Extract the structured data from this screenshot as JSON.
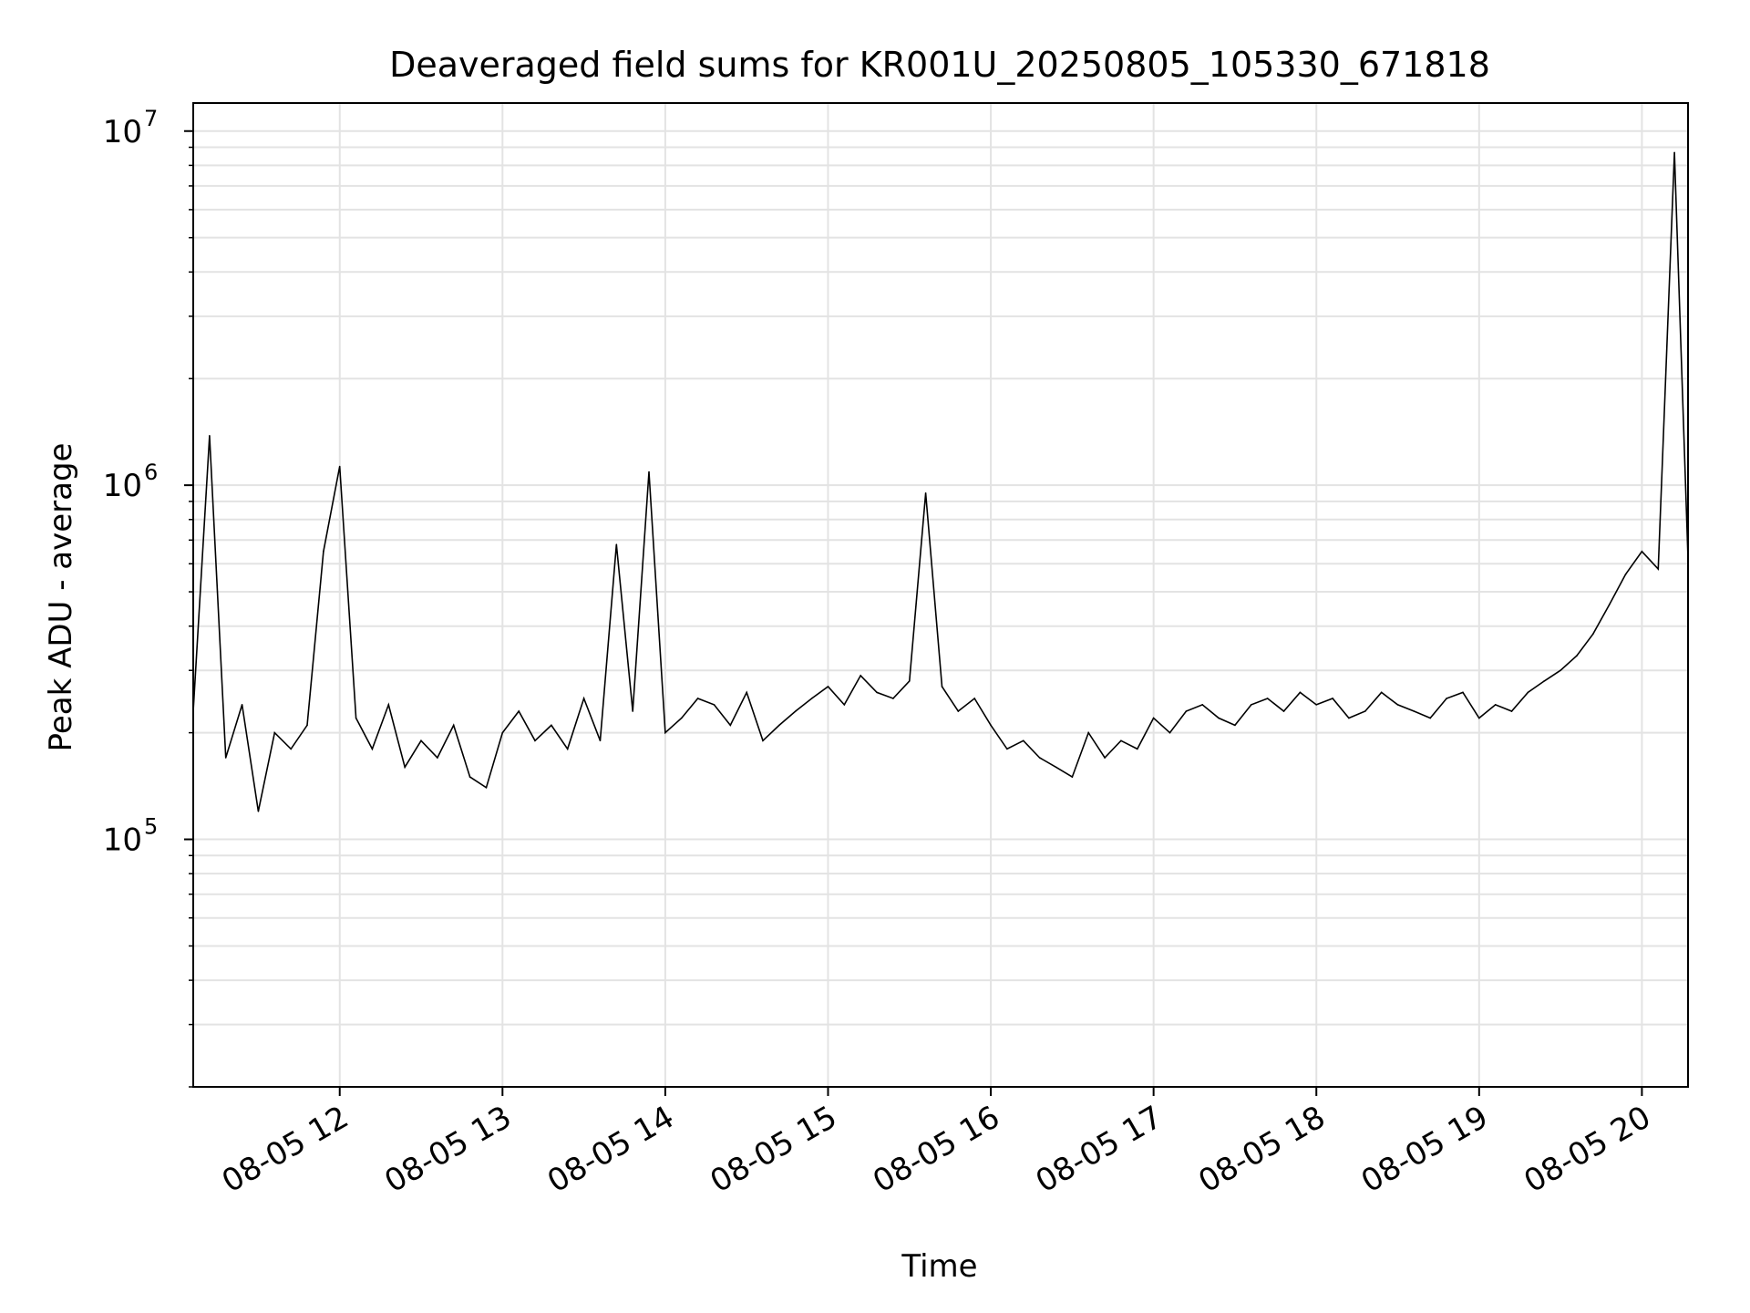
{
  "chart_data": {
    "type": "line",
    "title": "Deaveraged field sums for KR001U_20250805_105330_671818",
    "xlabel": "Time",
    "ylabel": "Peak ADU - average",
    "x_range": [
      "08-05 11:06",
      "08-05 20:17"
    ],
    "y_scale": "log",
    "ylim": [
      20000,
      12000000
    ],
    "grid": true,
    "line_color": "#000000",
    "grid_color": "#e3e3e3",
    "x_ticks": [
      {
        "value": "08-05 12:00",
        "label": "08-05 12"
      },
      {
        "value": "08-05 13:00",
        "label": "08-05 13"
      },
      {
        "value": "08-05 14:00",
        "label": "08-05 14"
      },
      {
        "value": "08-05 15:00",
        "label": "08-05 15"
      },
      {
        "value": "08-05 16:00",
        "label": "08-05 16"
      },
      {
        "value": "08-05 17:00",
        "label": "08-05 17"
      },
      {
        "value": "08-05 18:00",
        "label": "08-05 18"
      },
      {
        "value": "08-05 19:00",
        "label": "08-05 19"
      },
      {
        "value": "08-05 20:00",
        "label": "08-05 20"
      }
    ],
    "y_ticks": [
      {
        "value": 100000,
        "base": "10",
        "exp": "5"
      },
      {
        "value": 1000000,
        "base": "10",
        "exp": "6"
      },
      {
        "value": 10000000,
        "base": "10",
        "exp": "7"
      }
    ],
    "series": [
      {
        "x": [
          "08-05 11:06",
          "08-05 11:12",
          "08-05 11:18",
          "08-05 11:24",
          "08-05 11:30",
          "08-05 11:36",
          "08-05 11:42",
          "08-05 11:48",
          "08-05 11:54",
          "08-05 12:00",
          "08-05 12:06",
          "08-05 12:12",
          "08-05 12:18",
          "08-05 12:24",
          "08-05 12:30",
          "08-05 12:36",
          "08-05 12:42",
          "08-05 12:48",
          "08-05 12:54",
          "08-05 13:00",
          "08-05 13:06",
          "08-05 13:12",
          "08-05 13:18",
          "08-05 13:24",
          "08-05 13:30",
          "08-05 13:36",
          "08-05 13:42",
          "08-05 13:48",
          "08-05 13:54",
          "08-05 14:00",
          "08-05 14:06",
          "08-05 14:12",
          "08-05 14:18",
          "08-05 14:24",
          "08-05 14:30",
          "08-05 14:36",
          "08-05 14:42",
          "08-05 14:48",
          "08-05 14:54",
          "08-05 15:00",
          "08-05 15:06",
          "08-05 15:12",
          "08-05 15:18",
          "08-05 15:24",
          "08-05 15:30",
          "08-05 15:36",
          "08-05 15:42",
          "08-05 15:48",
          "08-05 15:54",
          "08-05 16:00",
          "08-05 16:06",
          "08-05 16:12",
          "08-05 16:18",
          "08-05 16:24",
          "08-05 16:30",
          "08-05 16:36",
          "08-05 16:42",
          "08-05 16:48",
          "08-05 16:54",
          "08-05 17:00",
          "08-05 17:06",
          "08-05 17:12",
          "08-05 17:18",
          "08-05 17:24",
          "08-05 17:30",
          "08-05 17:36",
          "08-05 17:42",
          "08-05 17:48",
          "08-05 17:54",
          "08-05 18:00",
          "08-05 18:06",
          "08-05 18:12",
          "08-05 18:18",
          "08-05 18:24",
          "08-05 18:30",
          "08-05 18:36",
          "08-05 18:42",
          "08-05 18:48",
          "08-05 18:54",
          "08-05 19:00",
          "08-05 19:06",
          "08-05 19:12",
          "08-05 19:18",
          "08-05 19:24",
          "08-05 19:30",
          "08-05 19:36",
          "08-05 19:42",
          "08-05 19:48",
          "08-05 19:54",
          "08-05 20:00",
          "08-05 20:06",
          "08-05 20:12",
          "08-05 20:17"
        ],
        "y": [
          230000,
          1380000,
          170000,
          240000,
          120000,
          200000,
          180000,
          210000,
          650000,
          1130000,
          220000,
          180000,
          240000,
          160000,
          190000,
          170000,
          210000,
          150000,
          140000,
          200000,
          230000,
          190000,
          210000,
          180000,
          250000,
          190000,
          680000,
          230000,
          1090000,
          200000,
          220000,
          250000,
          240000,
          210000,
          260000,
          190000,
          210000,
          230000,
          250000,
          270000,
          240000,
          290000,
          260000,
          250000,
          280000,
          950000,
          270000,
          230000,
          250000,
          210000,
          180000,
          190000,
          170000,
          160000,
          150000,
          200000,
          170000,
          190000,
          180000,
          220000,
          200000,
          230000,
          240000,
          220000,
          210000,
          240000,
          250000,
          230000,
          260000,
          240000,
          250000,
          220000,
          230000,
          260000,
          240000,
          230000,
          220000,
          250000,
          260000,
          220000,
          240000,
          230000,
          260000,
          280000,
          300000,
          330000,
          380000,
          460000,
          560000,
          650000,
          580000,
          8700000,
          620000
        ]
      }
    ]
  }
}
